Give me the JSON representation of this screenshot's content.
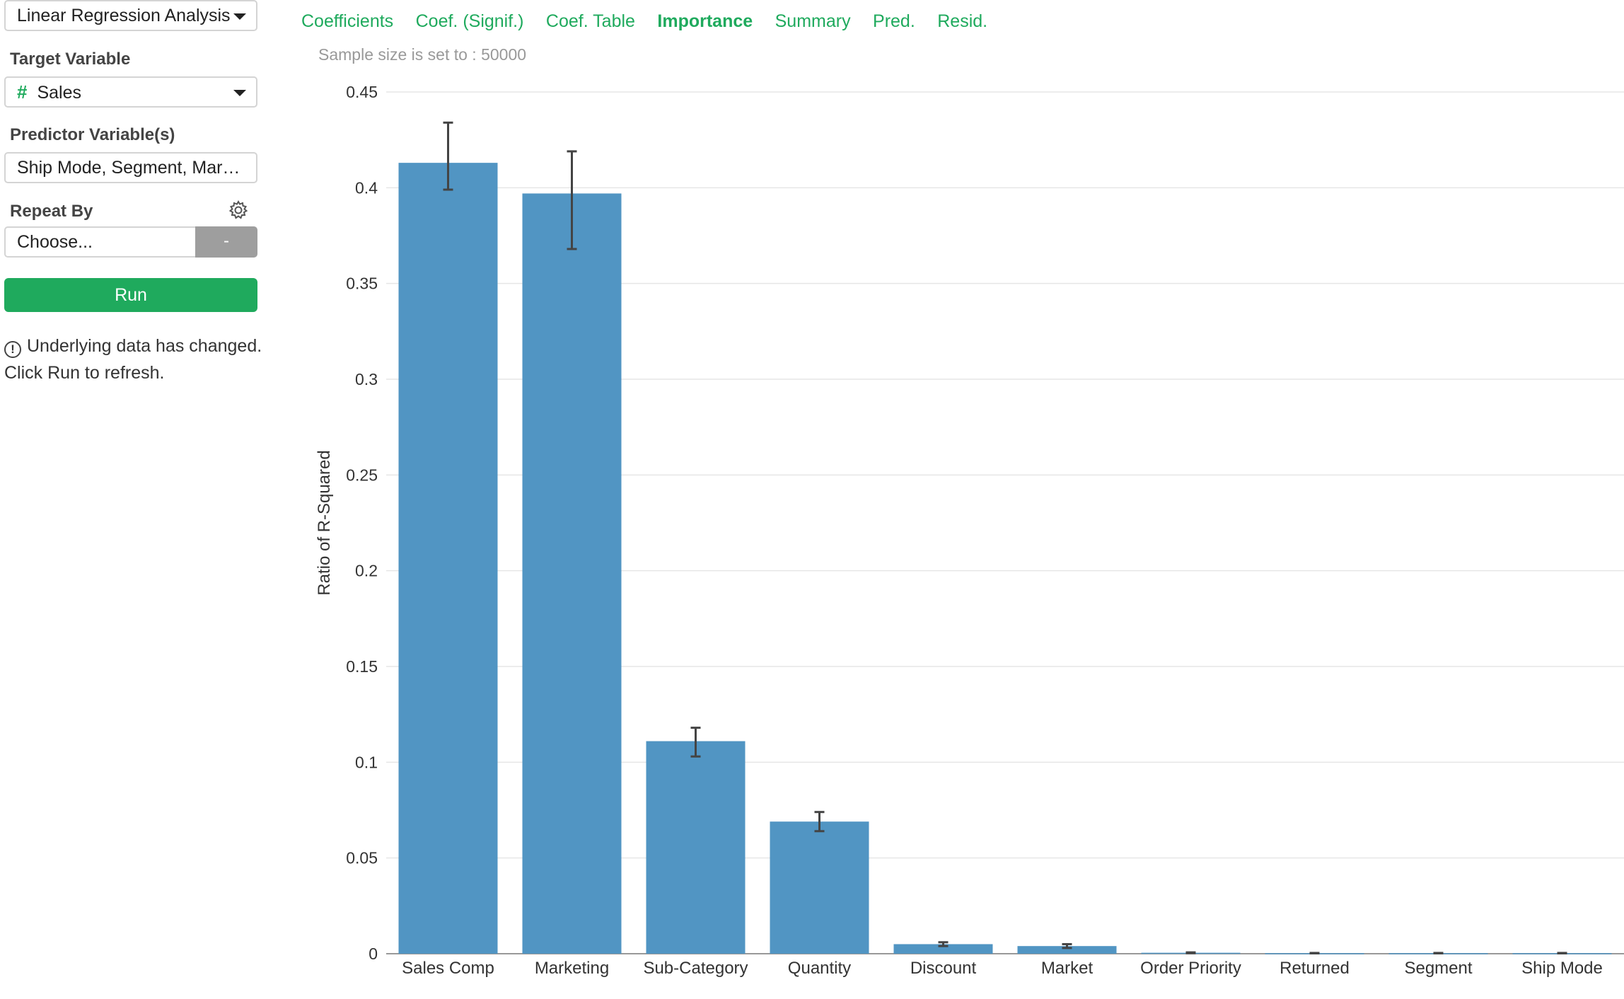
{
  "analysis_select": {
    "value": "Linear Regression Analysis"
  },
  "target": {
    "label": "Target Variable",
    "type_icon": "#",
    "value": "Sales"
  },
  "predictors": {
    "label": "Predictor Variable(s)",
    "value": "Ship Mode, Segment, Mar…"
  },
  "repeat_by": {
    "label": "Repeat By",
    "placeholder": "Choose...",
    "minus_label": "-"
  },
  "run_label": "Run",
  "notice": {
    "icon": "!",
    "text": "Underlying data has changed. Click Run to refresh."
  },
  "tabs": [
    {
      "label": "Coefficients",
      "active": false
    },
    {
      "label": "Coef. (Signif.)",
      "active": false
    },
    {
      "label": "Coef. Table",
      "active": false
    },
    {
      "label": "Importance",
      "active": true
    },
    {
      "label": "Summary",
      "active": false
    },
    {
      "label": "Pred.",
      "active": false
    },
    {
      "label": "Resid.",
      "active": false
    }
  ],
  "sample_text": "Sample size is set to : 50000",
  "colors": {
    "accent": "#1faa5d",
    "bar": "#5195c3",
    "error_bar": "#444444",
    "grid": "#e6e6e6"
  },
  "chart_data": {
    "type": "bar",
    "categories": [
      "Sales Comp",
      "Marketing",
      "Sub-Category",
      "Quantity",
      "Discount",
      "Market",
      "Order Priority",
      "Returned",
      "Segment",
      "Ship Mode"
    ],
    "values": [
      0.413,
      0.397,
      0.111,
      0.069,
      0.005,
      0.004,
      0.0005,
      0.0003,
      0.0003,
      0.0003
    ],
    "error_low": [
      0.399,
      0.368,
      0.103,
      0.064,
      0.004,
      0.003,
      0.0003,
      0.0002,
      0.0002,
      0.0002
    ],
    "error_high": [
      0.434,
      0.419,
      0.118,
      0.074,
      0.006,
      0.005,
      0.0007,
      0.0004,
      0.0004,
      0.0004
    ],
    "ylabel": "Ratio of R-Squared",
    "xlabel": "",
    "yticks": [
      "0",
      "0.05",
      "0.1",
      "0.15",
      "0.2",
      "0.25",
      "0.3",
      "0.35",
      "0.4",
      "0.45"
    ],
    "ylim": [
      0,
      0.45
    ],
    "grid": true
  }
}
